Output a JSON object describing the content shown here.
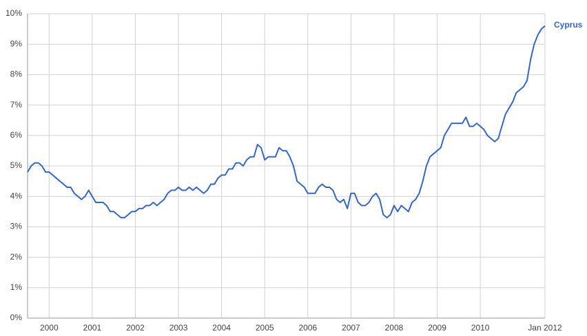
{
  "chart_data": {
    "type": "line",
    "x": [
      2000,
      2000.083,
      2000.167,
      2000.25,
      2000.333,
      2000.417,
      2000.5,
      2000.583,
      2000.667,
      2000.75,
      2000.833,
      2000.917,
      2001,
      2001.083,
      2001.167,
      2001.25,
      2001.333,
      2001.417,
      2001.5,
      2001.583,
      2001.667,
      2001.75,
      2001.833,
      2001.917,
      2002,
      2002.083,
      2002.167,
      2002.25,
      2002.333,
      2002.417,
      2002.5,
      2002.583,
      2002.667,
      2002.75,
      2002.833,
      2002.917,
      2003,
      2003.083,
      2003.167,
      2003.25,
      2003.333,
      2003.417,
      2003.5,
      2003.583,
      2003.667,
      2003.75,
      2003.833,
      2003.917,
      2004,
      2004.083,
      2004.167,
      2004.25,
      2004.333,
      2004.417,
      2004.5,
      2004.583,
      2004.667,
      2004.75,
      2004.833,
      2004.917,
      2005,
      2005.083,
      2005.167,
      2005.25,
      2005.333,
      2005.417,
      2005.5,
      2005.583,
      2005.667,
      2005.75,
      2005.833,
      2005.917,
      2006,
      2006.083,
      2006.167,
      2006.25,
      2006.333,
      2006.417,
      2006.5,
      2006.583,
      2006.667,
      2006.75,
      2006.833,
      2006.917,
      2007,
      2007.083,
      2007.167,
      2007.25,
      2007.333,
      2007.417,
      2007.5,
      2007.583,
      2007.667,
      2007.75,
      2007.833,
      2007.917,
      2008,
      2008.083,
      2008.167,
      2008.25,
      2008.333,
      2008.417,
      2008.5,
      2008.583,
      2008.667,
      2008.75,
      2008.833,
      2008.917,
      2009,
      2009.083,
      2009.167,
      2009.25,
      2009.333,
      2009.417,
      2009.5,
      2009.583,
      2009.667,
      2009.75,
      2009.833,
      2009.917,
      2010,
      2010.083,
      2010.167,
      2010.25,
      2010.333,
      2010.417,
      2010.5,
      2010.583,
      2010.667,
      2010.75,
      2010.833,
      2010.917,
      2011,
      2011.083,
      2011.167,
      2011.25,
      2011.333,
      2011.417,
      2011.5,
      2011.583,
      2011.667,
      2011.75,
      2011.833,
      2011.917,
      2012
    ],
    "series": [
      {
        "name": "Cyprus",
        "color": "#3366cc",
        "values": [
          4.8,
          5.0,
          5.1,
          5.1,
          5.0,
          4.8,
          4.8,
          4.7,
          4.6,
          4.5,
          4.4,
          4.3,
          4.3,
          4.1,
          4.0,
          3.9,
          4.0,
          4.2,
          4.0,
          3.8,
          3.8,
          3.8,
          3.7,
          3.5,
          3.5,
          3.4,
          3.3,
          3.3,
          3.4,
          3.5,
          3.5,
          3.6,
          3.6,
          3.7,
          3.7,
          3.8,
          3.7,
          3.8,
          3.9,
          4.1,
          4.2,
          4.2,
          4.3,
          4.2,
          4.2,
          4.3,
          4.2,
          4.3,
          4.2,
          4.1,
          4.2,
          4.4,
          4.4,
          4.6,
          4.7,
          4.7,
          4.9,
          4.9,
          5.1,
          5.1,
          5.0,
          5.2,
          5.3,
          5.3,
          5.7,
          5.6,
          5.2,
          5.3,
          5.3,
          5.3,
          5.6,
          5.5,
          5.5,
          5.3,
          5.0,
          4.5,
          4.4,
          4.3,
          4.1,
          4.1,
          4.1,
          4.3,
          4.4,
          4.3,
          4.3,
          4.2,
          3.9,
          3.8,
          3.9,
          3.6,
          4.1,
          4.1,
          3.8,
          3.7,
          3.7,
          3.8,
          4.0,
          4.1,
          3.9,
          3.4,
          3.3,
          3.4,
          3.7,
          3.5,
          3.7,
          3.6,
          3.5,
          3.8,
          3.9,
          4.1,
          4.5,
          5.0,
          5.3,
          5.4,
          5.5,
          5.6,
          6.0,
          6.2,
          6.4,
          6.4,
          6.4,
          6.4,
          6.6,
          6.3,
          6.3,
          6.4,
          6.3,
          6.2,
          6.0,
          5.9,
          5.8,
          5.9,
          6.3,
          6.7,
          6.9,
          7.1,
          7.4,
          7.5,
          7.6,
          7.8,
          8.5,
          9.0,
          9.3,
          9.5,
          9.6
        ]
      }
    ],
    "xlim": [
      2000,
      2012
    ],
    "xticks": [
      {
        "value": 2000.5,
        "label": "2000"
      },
      {
        "value": 2001.5,
        "label": "2001"
      },
      {
        "value": 2002.5,
        "label": "2002"
      },
      {
        "value": 2003.5,
        "label": "2003"
      },
      {
        "value": 2004.5,
        "label": "2004"
      },
      {
        "value": 2005.5,
        "label": "2005"
      },
      {
        "value": 2006.5,
        "label": "2006"
      },
      {
        "value": 2007.5,
        "label": "2007"
      },
      {
        "value": 2008.5,
        "label": "2008"
      },
      {
        "value": 2009.5,
        "label": "2009"
      },
      {
        "value": 2010.5,
        "label": "2010"
      },
      {
        "value": 2012,
        "label": "Jan 2012"
      }
    ],
    "ylim": [
      0,
      10
    ],
    "yticks": [
      {
        "value": 0,
        "label": "0%"
      },
      {
        "value": 1,
        "label": "1%"
      },
      {
        "value": 2,
        "label": "2%"
      },
      {
        "value": 3,
        "label": "3%"
      },
      {
        "value": 4,
        "label": "4%"
      },
      {
        "value": 5,
        "label": "5%"
      },
      {
        "value": 6,
        "label": "6%"
      },
      {
        "value": 7,
        "label": "7%"
      },
      {
        "value": 8,
        "label": "8%"
      },
      {
        "value": 9,
        "label": "9%"
      },
      {
        "value": 10,
        "label": "10%"
      }
    ],
    "grid": true,
    "legend": "right"
  }
}
